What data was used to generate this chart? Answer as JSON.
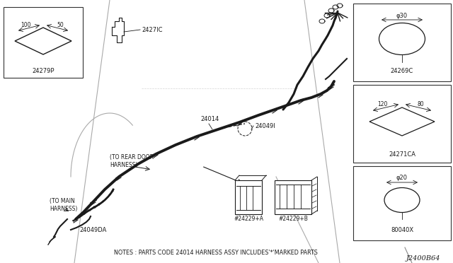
{
  "bg_color": "#ffffff",
  "line_color": "#1a1a1a",
  "diagram_id": "J2400B64",
  "notes": "NOTES : PARTS CODE 24014 HARNESS ASSY INCLUDES'*'MARKED PARTS",
  "parts_24279P": "24279P",
  "parts_2427IC": "2427IC",
  "parts_24014": "24014",
  "parts_24049I": "24049I",
  "parts_24049DA": "24049DA",
  "parts_24229A": "#24229+A",
  "parts_24229B": "#24229+B",
  "parts_24269C": "24269C",
  "parts_2427ICA": "24271CA",
  "parts_80040X": "80040X",
  "dim_30": "φ30",
  "dim_20": "φ20",
  "dim_100": "100",
  "dim_50": "50",
  "dim_120": "120",
  "dim_80": "80",
  "to_rear_door": "(TO REAR DOOR\nHARNESS)",
  "to_main": "(TO MAIN\nHARNESS)"
}
